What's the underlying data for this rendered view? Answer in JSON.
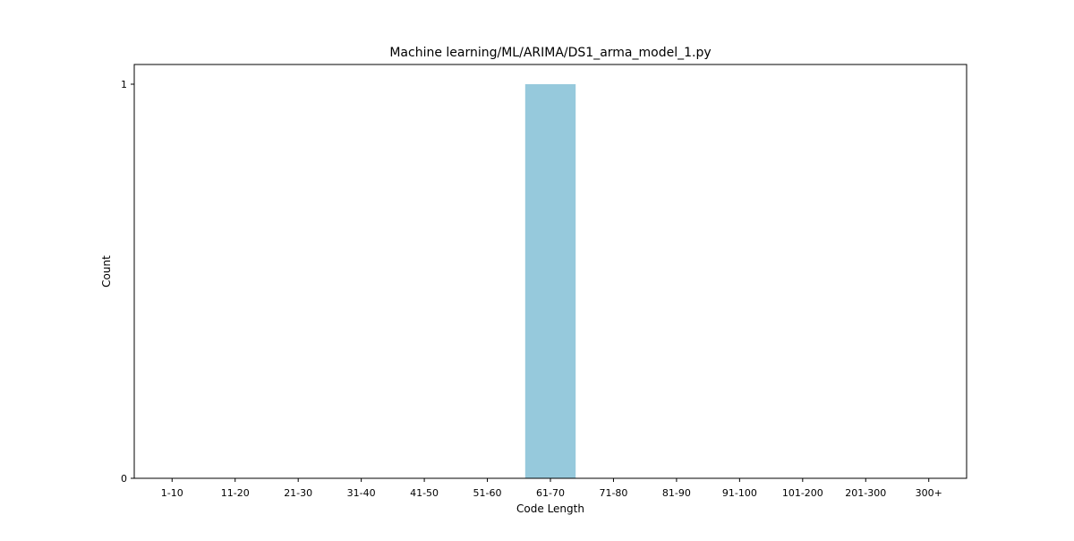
{
  "chart_data": {
    "type": "bar",
    "title": "Machine learning/ML/ARIMA/DS1_arma_model_1.py",
    "xlabel": "Code Length",
    "ylabel": "Count",
    "categories": [
      "1-10",
      "11-20",
      "21-30",
      "31-40",
      "41-50",
      "51-60",
      "61-70",
      "71-80",
      "81-90",
      "91-100",
      "101-200",
      "201-300",
      "300+"
    ],
    "values": [
      0,
      0,
      0,
      0,
      0,
      0,
      1,
      0,
      0,
      0,
      0,
      0,
      0
    ],
    "ylim": [
      0,
      1.05
    ],
    "yticks": [
      0,
      1
    ],
    "bar_color": "#96c9dc",
    "grid": false,
    "legend": "none"
  }
}
